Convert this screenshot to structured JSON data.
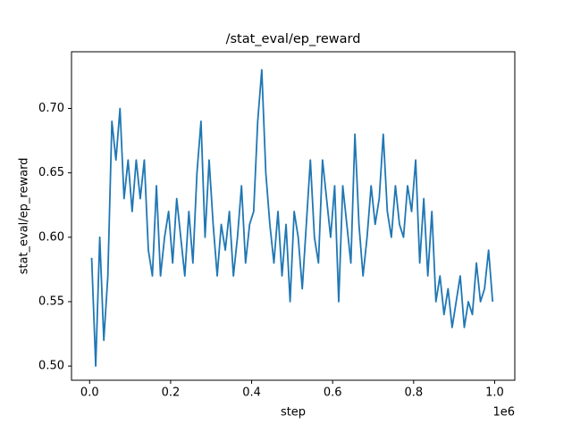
{
  "chart_data": {
    "type": "line",
    "title": "/stat_eval/ep_reward",
    "x_label": "step",
    "y_label": "stat_eval/ep_reward",
    "x_offset_label": "1e6",
    "x": [
      5000,
      15000,
      25000,
      35000,
      45000,
      55000,
      65000,
      75000,
      85000,
      95000,
      105000,
      115000,
      125000,
      135000,
      145000,
      155000,
      165000,
      175000,
      185000,
      195000,
      205000,
      215000,
      225000,
      235000,
      245000,
      255000,
      265000,
      275000,
      285000,
      295000,
      305000,
      315000,
      325000,
      335000,
      345000,
      355000,
      365000,
      375000,
      385000,
      395000,
      405000,
      415000,
      425000,
      435000,
      445000,
      455000,
      465000,
      475000,
      485000,
      495000,
      505000,
      515000,
      525000,
      535000,
      545000,
      555000,
      565000,
      575000,
      585000,
      595000,
      605000,
      615000,
      625000,
      635000,
      645000,
      655000,
      665000,
      675000,
      685000,
      695000,
      705000,
      715000,
      725000,
      735000,
      745000,
      755000,
      765000,
      775000,
      785000,
      795000,
      805000,
      815000,
      825000,
      835000,
      845000,
      855000,
      865000,
      875000,
      885000,
      895000,
      905000,
      915000,
      925000,
      935000,
      945000,
      955000,
      965000,
      975000,
      985000,
      995000
    ],
    "series": [
      {
        "name": "ep_reward",
        "color": "#1f77b4",
        "values": [
          0.584,
          0.5,
          0.6,
          0.52,
          0.57,
          0.69,
          0.66,
          0.7,
          0.63,
          0.66,
          0.62,
          0.66,
          0.63,
          0.66,
          0.59,
          0.57,
          0.64,
          0.57,
          0.6,
          0.62,
          0.58,
          0.63,
          0.6,
          0.57,
          0.62,
          0.58,
          0.65,
          0.69,
          0.6,
          0.66,
          0.61,
          0.57,
          0.61,
          0.59,
          0.62,
          0.57,
          0.6,
          0.64,
          0.58,
          0.61,
          0.62,
          0.69,
          0.73,
          0.65,
          0.61,
          0.58,
          0.62,
          0.57,
          0.61,
          0.55,
          0.62,
          0.6,
          0.56,
          0.61,
          0.66,
          0.6,
          0.58,
          0.66,
          0.63,
          0.6,
          0.64,
          0.55,
          0.64,
          0.61,
          0.58,
          0.68,
          0.61,
          0.57,
          0.6,
          0.64,
          0.61,
          0.63,
          0.68,
          0.62,
          0.6,
          0.64,
          0.61,
          0.6,
          0.64,
          0.62,
          0.66,
          0.58,
          0.63,
          0.57,
          0.62,
          0.55,
          0.57,
          0.54,
          0.56,
          0.53,
          0.55,
          0.57,
          0.53,
          0.55,
          0.54,
          0.58,
          0.55,
          0.56,
          0.59,
          0.55
        ]
      }
    ],
    "xlim": [
      -44750,
      1049750
    ],
    "ylim": [
      0.489,
      0.744
    ],
    "xticks": [
      {
        "value": 0,
        "label": "0.0"
      },
      {
        "value": 200000,
        "label": "0.2"
      },
      {
        "value": 400000,
        "label": "0.4"
      },
      {
        "value": 600000,
        "label": "0.6"
      },
      {
        "value": 800000,
        "label": "0.8"
      },
      {
        "value": 1000000,
        "label": "1.0"
      }
    ],
    "yticks": [
      {
        "value": 0.5,
        "label": "0.50"
      },
      {
        "value": 0.55,
        "label": "0.55"
      },
      {
        "value": 0.6,
        "label": "0.60"
      },
      {
        "value": 0.65,
        "label": "0.65"
      },
      {
        "value": 0.7,
        "label": "0.70"
      }
    ],
    "grid": false
  }
}
